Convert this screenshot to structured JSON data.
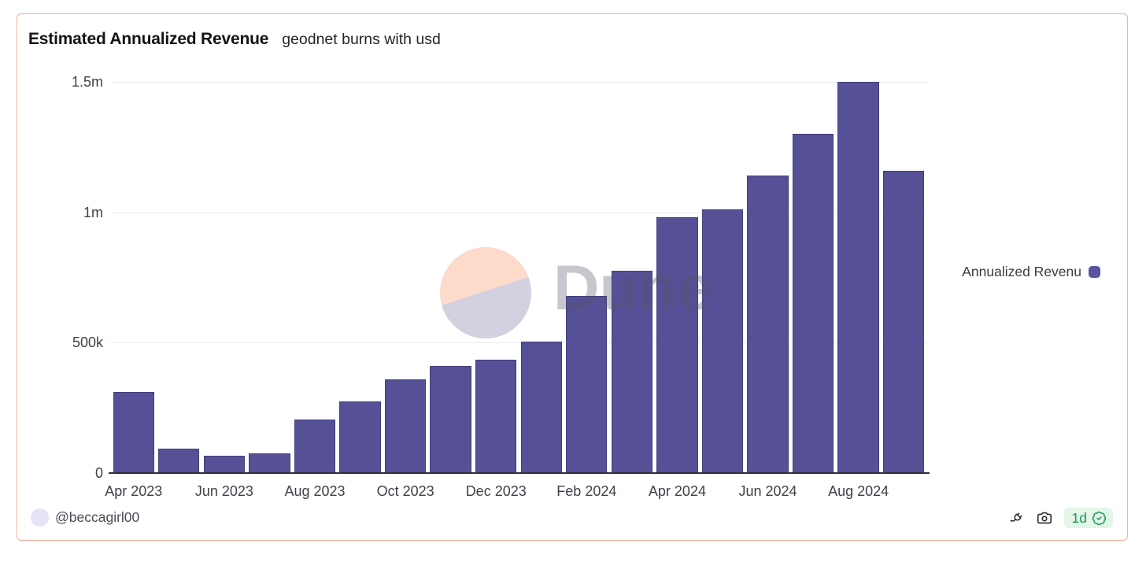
{
  "header": {
    "title": "Estimated Annualized Revenue",
    "subtitle": "geodnet burns with usd"
  },
  "chart_data": {
    "type": "bar",
    "title": "Estimated Annualized Revenue",
    "subtitle": "geodnet burns with usd",
    "categories": [
      "Apr 2023",
      "May 2023",
      "Jun 2023",
      "Jul 2023",
      "Aug 2023",
      "Sep 2023",
      "Oct 2023",
      "Nov 2023",
      "Dec 2023",
      "Jan 2024",
      "Feb 2024",
      "Mar 2024",
      "Apr 2024",
      "May 2024",
      "Jun 2024",
      "Jul 2024",
      "Aug 2024",
      "Sep 2024"
    ],
    "series": [
      {
        "name": "Annualized Revenue",
        "values": [
          310000,
          95000,
          65000,
          75000,
          205000,
          275000,
          360000,
          410000,
          435000,
          505000,
          680000,
          775000,
          980000,
          1010000,
          1140000,
          1300000,
          1500000,
          1160000
        ]
      }
    ],
    "x_tick_labels": [
      "Apr 2023",
      "Jun 2023",
      "Aug 2023",
      "Oct 2023",
      "Dec 2023",
      "Feb 2024",
      "Apr 2024",
      "Jun 2024",
      "Aug 2024"
    ],
    "y_ticks": [
      "1.5m",
      "1m",
      "500k",
      "0"
    ],
    "ylim": [
      0,
      1500000
    ],
    "grid": true,
    "legend_position": "right",
    "bar_color": "#565096"
  },
  "legend": {
    "label": "Annualized Revenu",
    "marker_color": "#5a54a0"
  },
  "watermark": {
    "text": "Dune"
  },
  "footer": {
    "author": "@beccagirl00",
    "badge_text": "1d"
  },
  "colors": {
    "card_border": "#f0ae9b",
    "badge_bg": "#e4f5e9",
    "badge_green": "#1a9b52",
    "gridline": "#ebebf0",
    "axis_text": "#3f4148"
  }
}
